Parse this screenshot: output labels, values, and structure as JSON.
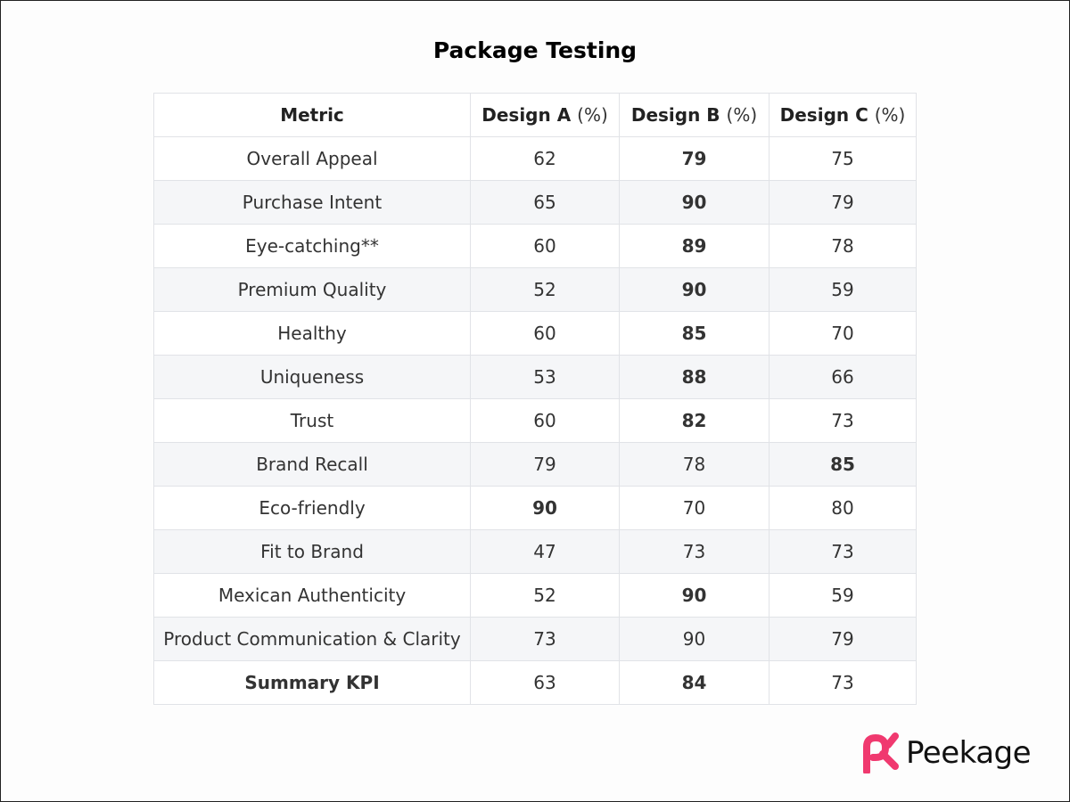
{
  "title": "Package Testing",
  "headers": [
    {
      "name": "Metric",
      "unit": ""
    },
    {
      "name": "Design A",
      "unit": "(%)"
    },
    {
      "name": "Design B",
      "unit": "(%)"
    },
    {
      "name": "Design C",
      "unit": "(%)"
    }
  ],
  "rows": [
    {
      "metric": "Overall Appeal",
      "values": [
        {
          "v": "62",
          "s": "normal"
        },
        {
          "v": "79",
          "s": "best"
        },
        {
          "v": "75",
          "s": "good"
        }
      ]
    },
    {
      "metric": "Purchase Intent",
      "values": [
        {
          "v": "65",
          "s": "normal"
        },
        {
          "v": "90",
          "s": "best"
        },
        {
          "v": "79",
          "s": "normal"
        }
      ]
    },
    {
      "metric": "Eye-catching**",
      "values": [
        {
          "v": "60",
          "s": "normal"
        },
        {
          "v": "89",
          "s": "best"
        },
        {
          "v": "78",
          "s": "normal"
        }
      ]
    },
    {
      "metric": "Premium Quality",
      "values": [
        {
          "v": "52",
          "s": "low"
        },
        {
          "v": "90",
          "s": "best"
        },
        {
          "v": "59",
          "s": "low"
        }
      ]
    },
    {
      "metric": "Healthy",
      "values": [
        {
          "v": "60",
          "s": "normal"
        },
        {
          "v": "85",
          "s": "best"
        },
        {
          "v": "70",
          "s": "normal"
        }
      ]
    },
    {
      "metric": "Uniqueness",
      "values": [
        {
          "v": "53",
          "s": "low"
        },
        {
          "v": "88",
          "s": "best"
        },
        {
          "v": "66",
          "s": "normal"
        }
      ]
    },
    {
      "metric": "Trust",
      "values": [
        {
          "v": "60",
          "s": "normal"
        },
        {
          "v": "82",
          "s": "best"
        },
        {
          "v": "73",
          "s": "normal"
        }
      ]
    },
    {
      "metric": "Brand Recall",
      "values": [
        {
          "v": "79",
          "s": "normal"
        },
        {
          "v": "78",
          "s": "normal"
        },
        {
          "v": "85",
          "s": "best"
        }
      ]
    },
    {
      "metric": "Eco-friendly",
      "values": [
        {
          "v": "90",
          "s": "best"
        },
        {
          "v": "70",
          "s": "normal"
        },
        {
          "v": "80",
          "s": "normal"
        }
      ]
    },
    {
      "metric": "Fit to Brand",
      "values": [
        {
          "v": "47",
          "s": "low"
        },
        {
          "v": "73",
          "s": "normal"
        },
        {
          "v": "73",
          "s": "normal"
        }
      ]
    },
    {
      "metric": "Mexican Authenticity",
      "values": [
        {
          "v": "52",
          "s": "low"
        },
        {
          "v": "90",
          "s": "best"
        },
        {
          "v": "59",
          "s": "low"
        }
      ]
    },
    {
      "metric": "Product Communication & Clarity",
      "values": [
        {
          "v": "73",
          "s": "low"
        },
        {
          "v": "90",
          "s": "normal"
        },
        {
          "v": "79",
          "s": "normal"
        }
      ]
    },
    {
      "metric": "Summary KPI",
      "bold": true,
      "values": [
        {
          "v": "63",
          "s": "low"
        },
        {
          "v": "84",
          "s": "best"
        },
        {
          "v": "73",
          "s": "normal"
        }
      ]
    }
  ],
  "colors": {
    "best": "#008000",
    "low": "#e8141a",
    "brand": "#f0396f"
  },
  "logo": {
    "text": "Peekage",
    "icon": "peekage-logo-icon"
  }
}
